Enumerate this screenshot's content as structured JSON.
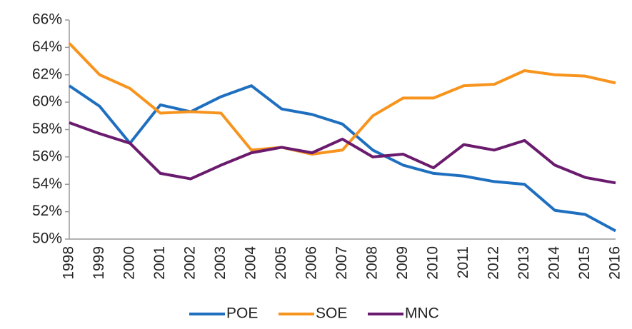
{
  "chart_data": {
    "type": "line",
    "categories": [
      "1998",
      "1999",
      "2000",
      "2001",
      "2002",
      "2003",
      "2004",
      "2005",
      "2006",
      "2007",
      "2008",
      "2009",
      "2010",
      "2011",
      "2012",
      "2013",
      "2014",
      "2015",
      "2016"
    ],
    "series": [
      {
        "name": "POE",
        "color": "#1f6fc0",
        "values": [
          61.2,
          59.7,
          57.0,
          59.8,
          59.3,
          60.4,
          61.2,
          59.5,
          59.1,
          58.4,
          56.5,
          55.4,
          54.8,
          54.6,
          54.2,
          54.0,
          52.1,
          51.8,
          50.6
        ]
      },
      {
        "name": "SOE",
        "color": "#f7941d",
        "values": [
          64.3,
          62.0,
          61.0,
          59.2,
          59.3,
          59.2,
          56.5,
          56.7,
          56.2,
          56.5,
          59.0,
          60.3,
          60.3,
          61.2,
          61.3,
          62.3,
          62.0,
          61.9,
          61.4
        ]
      },
      {
        "name": "MNC",
        "color": "#6a1b6e",
        "values": [
          58.5,
          57.7,
          57.0,
          54.8,
          54.4,
          55.4,
          56.3,
          56.7,
          56.3,
          57.3,
          56.0,
          56.2,
          55.2,
          56.9,
          56.5,
          57.2,
          55.4,
          54.5,
          54.1
        ]
      }
    ],
    "ylim": [
      50,
      66
    ],
    "yticks": [
      {
        "value": 50,
        "label": "50%"
      },
      {
        "value": 52,
        "label": "52%"
      },
      {
        "value": 54,
        "label": "54%"
      },
      {
        "value": 56,
        "label": "56%"
      },
      {
        "value": 58,
        "label": "58%"
      },
      {
        "value": 60,
        "label": "60%"
      },
      {
        "value": 62,
        "label": "62%"
      },
      {
        "value": 64,
        "label": "64%"
      },
      {
        "value": 66,
        "label": "66%"
      }
    ],
    "grid": false,
    "legend": "bottom"
  }
}
